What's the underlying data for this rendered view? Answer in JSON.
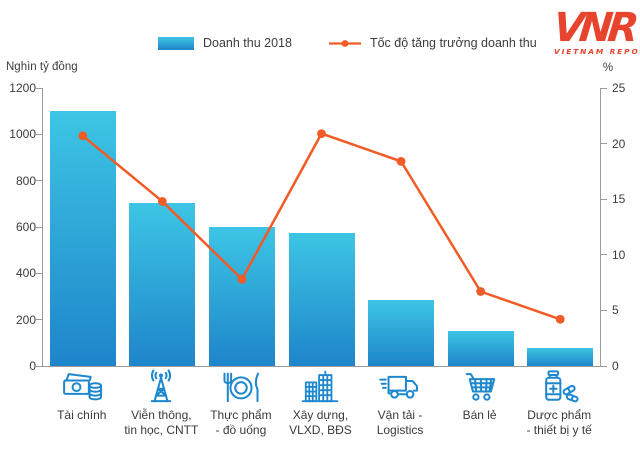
{
  "legend": {
    "bar_label": "Doanh thu 2018",
    "line_label": "Tốc độ tăng trưởng doanh thu"
  },
  "logo": {
    "text": "VNR",
    "subtitle": "VIETNAM REPORT"
  },
  "chart_data": {
    "type": "bar",
    "subtype": "combo bar + line, dual axis",
    "categories": [
      "Tài chính",
      "Viễn thông, tin học, CNTT",
      "Thực phẩm - đồ uống",
      "Xây dựng, VLXD, BĐS",
      "Vận tải - Logistics",
      "Bán lẻ",
      "Dược phẩm - thiết bị y tế"
    ],
    "category_label_lines": [
      [
        "Tài chính"
      ],
      [
        "Viễn thông,",
        "tin học, CNTT"
      ],
      [
        "Thực phẩm",
        "- đồ uống"
      ],
      [
        "Xây dựng,",
        "VLXD, BĐS"
      ],
      [
        "Vận tải -",
        "Logistics"
      ],
      [
        "Bán lẻ"
      ],
      [
        "Dược phẩm",
        "- thiết bị y tế"
      ]
    ],
    "category_icons": [
      "money-icon",
      "antenna-icon",
      "food-plate-icon",
      "buildings-icon",
      "truck-icon",
      "cart-icon",
      "medicine-icon"
    ],
    "series": [
      {
        "name": "Doanh thu 2018",
        "type": "bar",
        "axis": "left",
        "values": [
          1100,
          705,
          600,
          575,
          285,
          150,
          78
        ]
      },
      {
        "name": "Tốc độ tăng trưởng doanh thu",
        "type": "line",
        "axis": "right",
        "values": [
          20.7,
          14.8,
          7.8,
          20.9,
          18.4,
          6.7,
          4.2
        ]
      }
    ],
    "left_axis": {
      "title": "Nghìn tỷ đồng",
      "min": 0,
      "max": 1200,
      "ticks": [
        0,
        200,
        400,
        600,
        800,
        1000,
        1200
      ]
    },
    "right_axis": {
      "title": "%",
      "min": 0,
      "max": 25,
      "ticks": [
        0,
        5,
        10,
        15,
        20,
        25
      ]
    },
    "grid": false,
    "legend_position": "top-center",
    "colors": {
      "bar_top": "#3DC5E4",
      "bar_bottom": "#1E85CA",
      "line": "#F15B25",
      "icon": "#1E88CE",
      "logo": "#E8432D",
      "axis": "#9B9B9B"
    }
  }
}
